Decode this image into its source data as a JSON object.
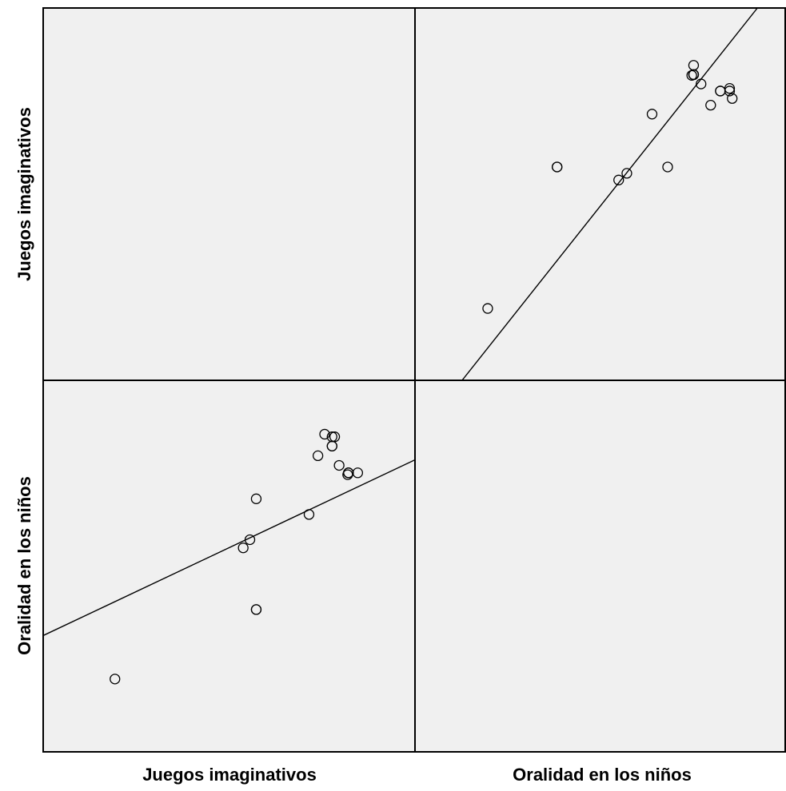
{
  "chart_data": {
    "type": "scatter",
    "subtype": "scatterplot-matrix",
    "variables": [
      "Juegos imaginativos",
      "Oralidad en los niños"
    ],
    "row_labels": [
      "Juegos imaginativos",
      "Oralidad en los niños"
    ],
    "column_labels": [
      "Juegos imaginativos",
      "Oralidad en los niños"
    ],
    "ranges": {
      "Juegos imaginativos": [
        0,
        100
      ],
      "Oralidad en los niños": [
        0,
        100
      ]
    },
    "fit_line": true,
    "marker": "open-circle",
    "marker_color": "#000000",
    "background_color": "#f0f0f0",
    "line_color": "#000000",
    "grid": false,
    "points": [
      {
        "Juegos imaginativos": 19.3,
        "Oralidad en los niños": 19.6
      },
      {
        "Juegos imaginativos": 57.3,
        "Oralidad en los niños": 38.3
      },
      {
        "Juegos imaginativos": 57.3,
        "Oralidad en los niños": 38.3
      },
      {
        "Juegos imaginativos": 53.8,
        "Oralidad en los niños": 54.9
      },
      {
        "Juegos imaginativos": 55.6,
        "Oralidad en los niños": 57.1
      },
      {
        "Juegos imaginativos": 71.5,
        "Oralidad en los niños": 63.9
      },
      {
        "Juegos imaginativos": 57.3,
        "Oralidad en los niños": 68.1
      },
      {
        "Juegos imaginativos": 81.9,
        "Oralidad en los niños": 74.6
      },
      {
        "Juegos imaginativos": 84.6,
        "Oralidad en los niños": 75.1
      },
      {
        "Juegos imaginativos": 82.1,
        "Oralidad en los niños": 75.1
      },
      {
        "Juegos imaginativos": 82.1,
        "Oralidad en los niños": 75.1
      },
      {
        "Juegos imaginativos": 79.6,
        "Oralidad en los niños": 77.1
      },
      {
        "Juegos imaginativos": 73.9,
        "Oralidad en los niños": 79.7
      },
      {
        "Juegos imaginativos": 77.7,
        "Oralidad en los niños": 82.3
      },
      {
        "Juegos imaginativos": 77.7,
        "Oralidad en los niños": 82.3
      },
      {
        "Juegos imaginativos": 77.7,
        "Oralidad en los niños": 84.8
      },
      {
        "Juegos imaginativos": 78.4,
        "Oralidad en los niños": 84.8
      },
      {
        "Juegos imaginativos": 75.7,
        "Oralidad en los niños": 85.5
      },
      {
        "Juegos imaginativos": 82.1,
        "Oralidad en los niños": 75.1
      }
    ],
    "fit_lines": {
      "Oralidad en los niños_vs_Juegos imaginativos": {
        "p1": [
          0,
          31.3
        ],
        "p2": [
          100,
          78.6
        ]
      },
      "Juegos imaginativos_vs_Oralidad en los niños": {
        "p1": [
          12.7,
          0
        ],
        "p2": [
          92.3,
          100
        ]
      }
    }
  }
}
